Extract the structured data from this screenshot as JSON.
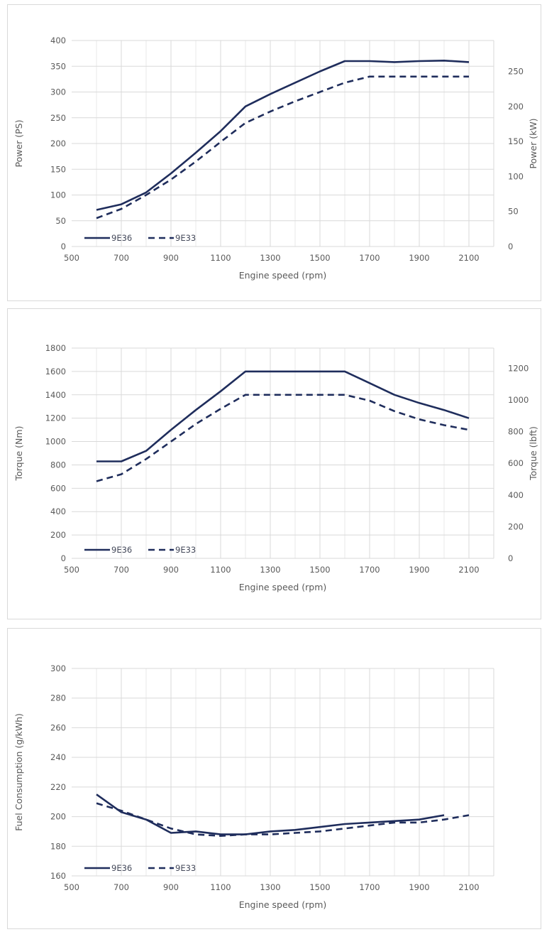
{
  "colors": {
    "series": "#1f2d5c",
    "grid": "#d9d9d9",
    "text": "#595959"
  },
  "chart_data": [
    {
      "type": "line",
      "xlabel": "Engine speed (rpm)",
      "ylabel": "Power (PS)",
      "ylabel_right": "Power (kW)",
      "xlim": [
        500,
        2200
      ],
      "ylim": [
        0,
        400
      ],
      "ylim_right": [
        0,
        294.2
      ],
      "x_ticks": [
        "500",
        "700",
        "900",
        "1100",
        "1300",
        "1500",
        "1700",
        "1900",
        "2100"
      ],
      "y_ticks": [
        "0",
        "50",
        "100",
        "150",
        "200",
        "250",
        "300",
        "350",
        "400"
      ],
      "y_ticks_right": [
        "0",
        "50",
        "100",
        "150",
        "200",
        "250"
      ],
      "grid": true,
      "legend_position": "bottom-left",
      "series": [
        {
          "name": "9E36",
          "style": "solid",
          "x": [
            600,
            700,
            800,
            900,
            1000,
            1100,
            1200,
            1300,
            1400,
            1500,
            1600,
            1700,
            1800,
            1900,
            2000,
            2100
          ],
          "y": [
            71,
            82,
            105,
            142,
            182,
            224,
            272,
            296,
            318,
            340,
            360,
            360,
            358,
            360,
            361,
            358
          ]
        },
        {
          "name": "9E33",
          "style": "dashed",
          "x": [
            600,
            700,
            800,
            900,
            1000,
            1100,
            1200,
            1300,
            1400,
            1500,
            1600,
            1700,
            1800,
            1900,
            2000,
            2100
          ],
          "y": [
            55,
            73,
            100,
            130,
            165,
            203,
            240,
            262,
            282,
            300,
            318,
            330,
            330,
            330,
            330,
            330
          ]
        }
      ]
    },
    {
      "type": "line",
      "xlabel": "Engine speed (rpm)",
      "ylabel": "Torque (Nm)",
      "ylabel_right": "Torque (lbft)",
      "xlim": [
        500,
        2200
      ],
      "ylim": [
        0,
        1800
      ],
      "ylim_right": [
        0,
        1327.6
      ],
      "x_ticks": [
        "500",
        "700",
        "900",
        "1100",
        "1300",
        "1500",
        "1700",
        "1900",
        "2100"
      ],
      "y_ticks": [
        "0",
        "200",
        "400",
        "600",
        "800",
        "1000",
        "1200",
        "1400",
        "1600",
        "1800"
      ],
      "y_ticks_right": [
        "0",
        "200",
        "400",
        "600",
        "800",
        "1000",
        "1200"
      ],
      "grid": true,
      "legend_position": "bottom-left",
      "series": [
        {
          "name": "9E36",
          "style": "solid",
          "x": [
            600,
            700,
            800,
            900,
            1000,
            1100,
            1200,
            1300,
            1400,
            1500,
            1600,
            1700,
            1800,
            1900,
            2000,
            2100
          ],
          "y": [
            830,
            830,
            920,
            1100,
            1270,
            1430,
            1600,
            1600,
            1600,
            1600,
            1600,
            1500,
            1400,
            1330,
            1270,
            1200
          ]
        },
        {
          "name": "9E33",
          "style": "dashed",
          "x": [
            600,
            700,
            800,
            900,
            1000,
            1100,
            1200,
            1300,
            1400,
            1500,
            1600,
            1700,
            1800,
            1900,
            2000,
            2100
          ],
          "y": [
            660,
            720,
            850,
            1000,
            1150,
            1280,
            1400,
            1400,
            1400,
            1400,
            1400,
            1350,
            1260,
            1190,
            1140,
            1100
          ]
        }
      ]
    },
    {
      "type": "line",
      "xlabel": "Engine speed (rpm)",
      "ylabel": "Fuel Consumption (g/kWh)",
      "xlim": [
        500,
        2200
      ],
      "ylim": [
        160,
        300
      ],
      "x_ticks": [
        "500",
        "700",
        "900",
        "1100",
        "1300",
        "1500",
        "1700",
        "1900",
        "2100"
      ],
      "y_ticks": [
        "160",
        "180",
        "200",
        "220",
        "240",
        "260",
        "280",
        "300"
      ],
      "grid": true,
      "legend_position": "bottom-left",
      "series": [
        {
          "name": "9E36",
          "style": "solid",
          "x": [
            600,
            700,
            800,
            900,
            1000,
            1100,
            1200,
            1300,
            1400,
            1500,
            1600,
            1700,
            1800,
            1900,
            2000
          ],
          "y": [
            215,
            203,
            198,
            189,
            190,
            188,
            188,
            190,
            191,
            193,
            195,
            196,
            197,
            198,
            201
          ]
        },
        {
          "name": "9E33",
          "style": "dashed",
          "x": [
            600,
            700,
            800,
            900,
            1000,
            1100,
            1200,
            1300,
            1400,
            1500,
            1600,
            1700,
            1800,
            1900,
            2000,
            2100
          ],
          "y": [
            209,
            204,
            198,
            192,
            188,
            187,
            188,
            188,
            189,
            190,
            192,
            194,
            196,
            196,
            198,
            201
          ]
        }
      ]
    }
  ]
}
